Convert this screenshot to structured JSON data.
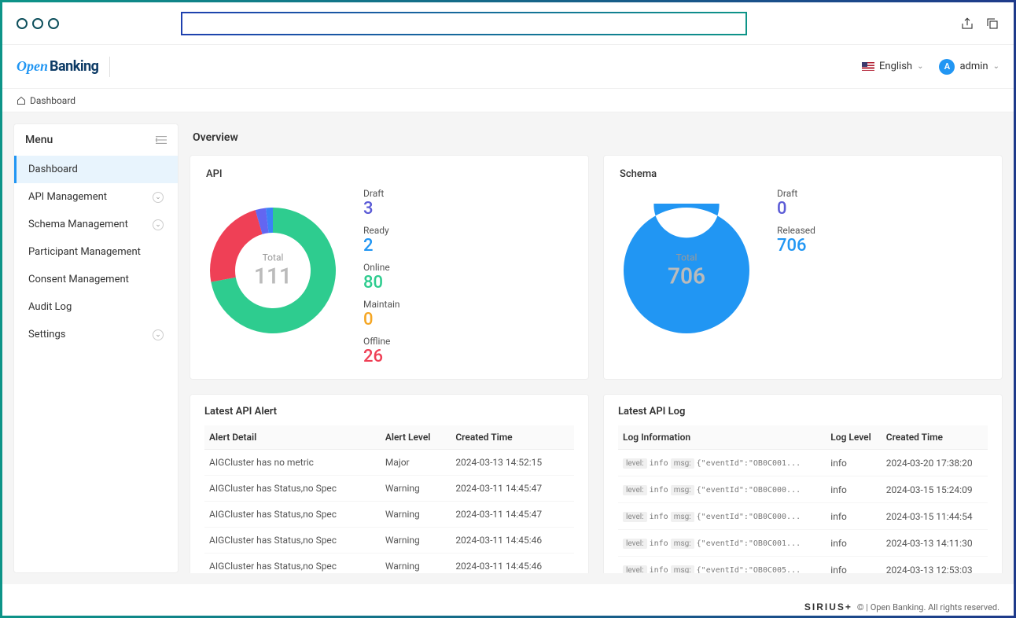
{
  "header": {
    "logo_open": "Open",
    "logo_banking": "Banking",
    "language": "English",
    "user": "admin",
    "avatar_letter": "A"
  },
  "breadcrumb": {
    "label": "Dashboard"
  },
  "sidebar": {
    "title": "Menu",
    "items": [
      {
        "label": "Dashboard",
        "active": true,
        "expandable": false
      },
      {
        "label": "API Management",
        "active": false,
        "expandable": true
      },
      {
        "label": "Schema Management",
        "active": false,
        "expandable": true
      },
      {
        "label": "Participant Management",
        "active": false,
        "expandable": false
      },
      {
        "label": "Consent Management",
        "active": false,
        "expandable": false
      },
      {
        "label": "Audit Log",
        "active": false,
        "expandable": false
      },
      {
        "label": "Settings",
        "active": false,
        "expandable": true
      }
    ]
  },
  "page_title": "Overview",
  "api_panel": {
    "title": "API",
    "chart": {
      "type": "donut",
      "total_label": "Total",
      "total": 111,
      "segments": [
        {
          "label": "Online",
          "value": 80,
          "color": "#2ecc8f"
        },
        {
          "label": "Offline",
          "value": 26,
          "color": "#ef4056"
        },
        {
          "label": "Draft",
          "value": 3,
          "color": "#6366f1"
        },
        {
          "label": "Ready",
          "value": 2,
          "color": "#3b82f6"
        }
      ],
      "inner_radius_pct": 60,
      "background_color": "#ffffff"
    },
    "stats": [
      {
        "label": "Draft",
        "value": "3",
        "color": "#5b5bd6"
      },
      {
        "label": "Ready",
        "value": "2",
        "color": "#2196f3"
      },
      {
        "label": "Online",
        "value": "80",
        "color": "#2ecc8f"
      },
      {
        "label": "Maintain",
        "value": "0",
        "color": "#f5a623"
      },
      {
        "label": "Offline",
        "value": "26",
        "color": "#ef4056"
      }
    ]
  },
  "schema_panel": {
    "title": "Schema",
    "chart": {
      "type": "donut",
      "total_label": "Total",
      "total": 706,
      "segments": [
        {
          "label": "Released",
          "value": 706,
          "color": "#2196f3"
        }
      ],
      "inner_radius_pct": 52,
      "background_color": "#ffffff"
    },
    "stats": [
      {
        "label": "Draft",
        "value": "0",
        "color": "#5b5bd6"
      },
      {
        "label": "Released",
        "value": "706",
        "color": "#2196f3"
      }
    ]
  },
  "alert_table": {
    "title": "Latest API Alert",
    "columns": [
      "Alert Detail",
      "Alert Level",
      "Created Time"
    ],
    "rows": [
      [
        "AIGCluster has no metric",
        "Major",
        "2024-03-13 14:52:15"
      ],
      [
        "AIGCluster has Status,no Spec",
        "Warning",
        "2024-03-11 14:45:47"
      ],
      [
        "AIGCluster has Status,no Spec",
        "Warning",
        "2024-03-11 14:45:47"
      ],
      [
        "AIGCluster has Status,no Spec",
        "Warning",
        "2024-03-11 14:45:46"
      ],
      [
        "AIGCluster has Status,no Spec",
        "Warning",
        "2024-03-11 14:45:46"
      ]
    ]
  },
  "log_table": {
    "title": "Latest API Log",
    "columns": [
      "Log Information",
      "Log Level",
      "Created Time"
    ],
    "rows": [
      {
        "level": "info",
        "msg": "{\"eventId\":\"OB0C001...",
        "log_level": "info",
        "time": "2024-03-20 17:38:20"
      },
      {
        "level": "info",
        "msg": "{\"eventId\":\"OB0C000...",
        "log_level": "info",
        "time": "2024-03-15 15:24:09"
      },
      {
        "level": "info",
        "msg": "{\"eventId\":\"OB0C000...",
        "log_level": "info",
        "time": "2024-03-15 11:44:54"
      },
      {
        "level": "info",
        "msg": "{\"eventId\":\"OB0C001...",
        "log_level": "info",
        "time": "2024-03-13 14:11:30"
      },
      {
        "level": "info",
        "msg": "{\"eventId\":\"OB0C005...",
        "log_level": "info",
        "time": "2024-03-13 12:53:03"
      }
    ]
  },
  "footer": {
    "brand": "SIRIUS+",
    "text": "© | Open Banking. All rights reserved."
  }
}
